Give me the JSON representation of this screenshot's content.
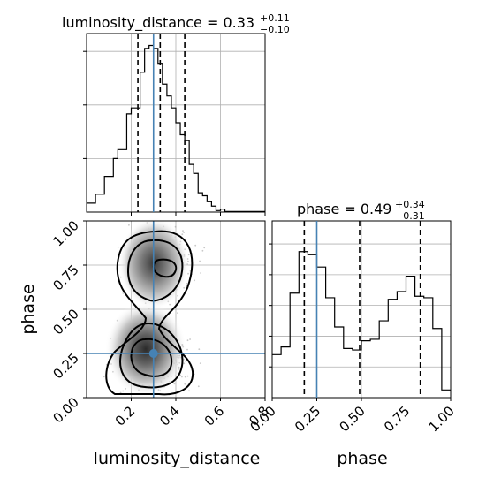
{
  "colors": {
    "truth": "#4682b4",
    "histogram": "#000000",
    "density": "#808080",
    "grid": "#b0b0b0"
  },
  "titles": {
    "luminosity_distance": {
      "text": "luminosity_distance = 0.33",
      "upper": "+0.11",
      "lower": "−0.10"
    },
    "phase": {
      "text": "phase = 0.49",
      "upper": "+0.34",
      "lower": "−0.31"
    }
  },
  "axis_labels": {
    "x_left": "luminosity_distance",
    "x_right": "phase",
    "y_left": "phase"
  },
  "chart_data": [
    {
      "type": "bar",
      "panel": "luminosity_distance marginal histogram",
      "title": "luminosity_distance = 0.33 (+0.11, −0.10)",
      "xlim": [
        0.0,
        0.8
      ],
      "bin_edges": [
        0.0,
        0.04,
        0.08,
        0.12,
        0.14,
        0.16,
        0.18,
        0.2,
        0.22,
        0.24,
        0.26,
        0.28,
        0.3,
        0.32,
        0.34,
        0.36,
        0.38,
        0.4,
        0.42,
        0.44,
        0.46,
        0.48,
        0.5,
        0.52,
        0.54,
        0.56,
        0.58,
        0.6,
        0.62,
        0.8
      ],
      "values": [
        0.3,
        0.6,
        1.2,
        1.8,
        2.1,
        2.1,
        3.3,
        3.5,
        3.5,
        4.7,
        5.5,
        5.6,
        5.5,
        5.0,
        4.3,
        3.9,
        3.5,
        3.0,
        2.6,
        2.4,
        1.6,
        1.3,
        0.65,
        0.55,
        0.35,
        0.2,
        0.05,
        0.1,
        0.02
      ],
      "quantiles": [
        0.23,
        0.33,
        0.44
      ],
      "truth": 0.3
    },
    {
      "type": "heatmap",
      "panel": "2D density (luminosity_distance vs phase)",
      "xlabel": "luminosity_distance",
      "ylabel": "phase",
      "xlim": [
        0.0,
        0.8
      ],
      "ylim": [
        0.0,
        1.0
      ],
      "x_ticks": [
        "0.2",
        "0.4",
        "0.6",
        "0.8"
      ],
      "y_ticks": [
        "0.00",
        "0.25",
        "0.50",
        "0.75",
        "1.00"
      ],
      "density_modes": [
        {
          "x": 0.33,
          "y": 0.78,
          "level": 0.8
        },
        {
          "x": 0.3,
          "y": 0.22,
          "level": 1.0
        }
      ],
      "truth": {
        "x": 0.3,
        "y": 0.25
      }
    },
    {
      "type": "bar",
      "panel": "phase marginal histogram",
      "title": "phase = 0.49 (+0.34, −0.31)",
      "xlabel": "phase",
      "xlim": [
        0.0,
        1.0
      ],
      "x_ticks": [
        "0.00",
        "0.25",
        "0.50",
        "0.75",
        "1.00"
      ],
      "bin_edges": [
        0.0,
        0.05,
        0.1,
        0.15,
        0.2,
        0.25,
        0.3,
        0.35,
        0.4,
        0.45,
        0.5,
        0.55,
        0.6,
        0.65,
        0.7,
        0.75,
        0.8,
        0.85,
        0.9,
        0.95,
        1.0
      ],
      "values": [
        0.28,
        0.33,
        0.68,
        0.95,
        0.93,
        0.85,
        0.65,
        0.46,
        0.32,
        0.31,
        0.37,
        0.38,
        0.5,
        0.64,
        0.69,
        0.79,
        0.66,
        0.65,
        0.45,
        0.05
      ],
      "quantiles": [
        0.18,
        0.49,
        0.83
      ],
      "truth": 0.25
    }
  ]
}
